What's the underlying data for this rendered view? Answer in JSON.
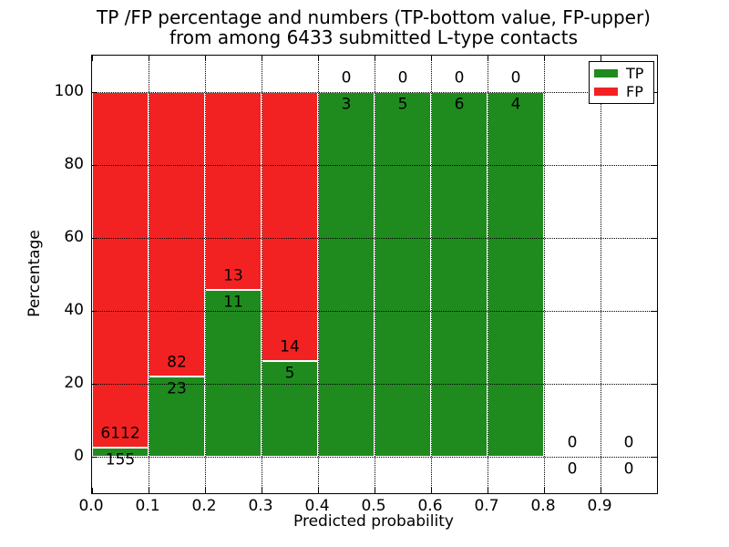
{
  "figure": {
    "title_line1": "TP /FP percentage and numbers (TP-bottom value, FP-upper)",
    "title_line2": "from among 6433 submitted L-type contacts"
  },
  "axes": {
    "xlabel": "Predicted probability",
    "ylabel": "Percentage",
    "xticks": [
      "0.0",
      "0.1",
      "0.2",
      "0.3",
      "0.4",
      "0.5",
      "0.6",
      "0.7",
      "0.8",
      "0.9"
    ],
    "yticks": [
      "0",
      "20",
      "40",
      "60",
      "80",
      "100"
    ]
  },
  "legend": {
    "items": [
      {
        "label": "TP",
        "color": "#1f8b1f"
      },
      {
        "label": "FP",
        "color": "#f32222"
      }
    ]
  },
  "colors": {
    "tp_green": "#1f8b1f",
    "fp_red": "#f32222",
    "grid": "#000000",
    "background": "#ffffff"
  },
  "chart_data": {
    "type": "bar",
    "stacked": true,
    "title": "TP /FP percentage and numbers (TP-bottom value, FP-upper) from among 6433 submitted L-type contacts",
    "xlabel": "Predicted probability",
    "ylabel": "Percentage",
    "xlim": [
      0,
      1
    ],
    "ylim": [
      -10,
      110
    ],
    "bin_width": 0.1,
    "grid": "dotted",
    "legend_position": "upper right",
    "series": [
      {
        "name": "TP",
        "color": "#1f8b1f"
      },
      {
        "name": "FP",
        "color": "#f32222"
      }
    ],
    "bins": [
      {
        "x0": 0.0,
        "tp": 155,
        "fp": 6112,
        "tp_pct": 2.47
      },
      {
        "x0": 0.1,
        "tp": 23,
        "fp": 82,
        "tp_pct": 21.9
      },
      {
        "x0": 0.2,
        "tp": 11,
        "fp": 13,
        "tp_pct": 45.83
      },
      {
        "x0": 0.3,
        "tp": 5,
        "fp": 14,
        "tp_pct": 26.32
      },
      {
        "x0": 0.4,
        "tp": 3,
        "fp": 0,
        "tp_pct": 100
      },
      {
        "x0": 0.5,
        "tp": 5,
        "fp": 0,
        "tp_pct": 100
      },
      {
        "x0": 0.6,
        "tp": 6,
        "fp": 0,
        "tp_pct": 100
      },
      {
        "x0": 0.7,
        "tp": 4,
        "fp": 0,
        "tp_pct": 100
      },
      {
        "x0": 0.8,
        "tp": 0,
        "fp": 0,
        "tp_pct": 0
      },
      {
        "x0": 0.9,
        "tp": 0,
        "fp": 0,
        "tp_pct": 0
      }
    ]
  }
}
